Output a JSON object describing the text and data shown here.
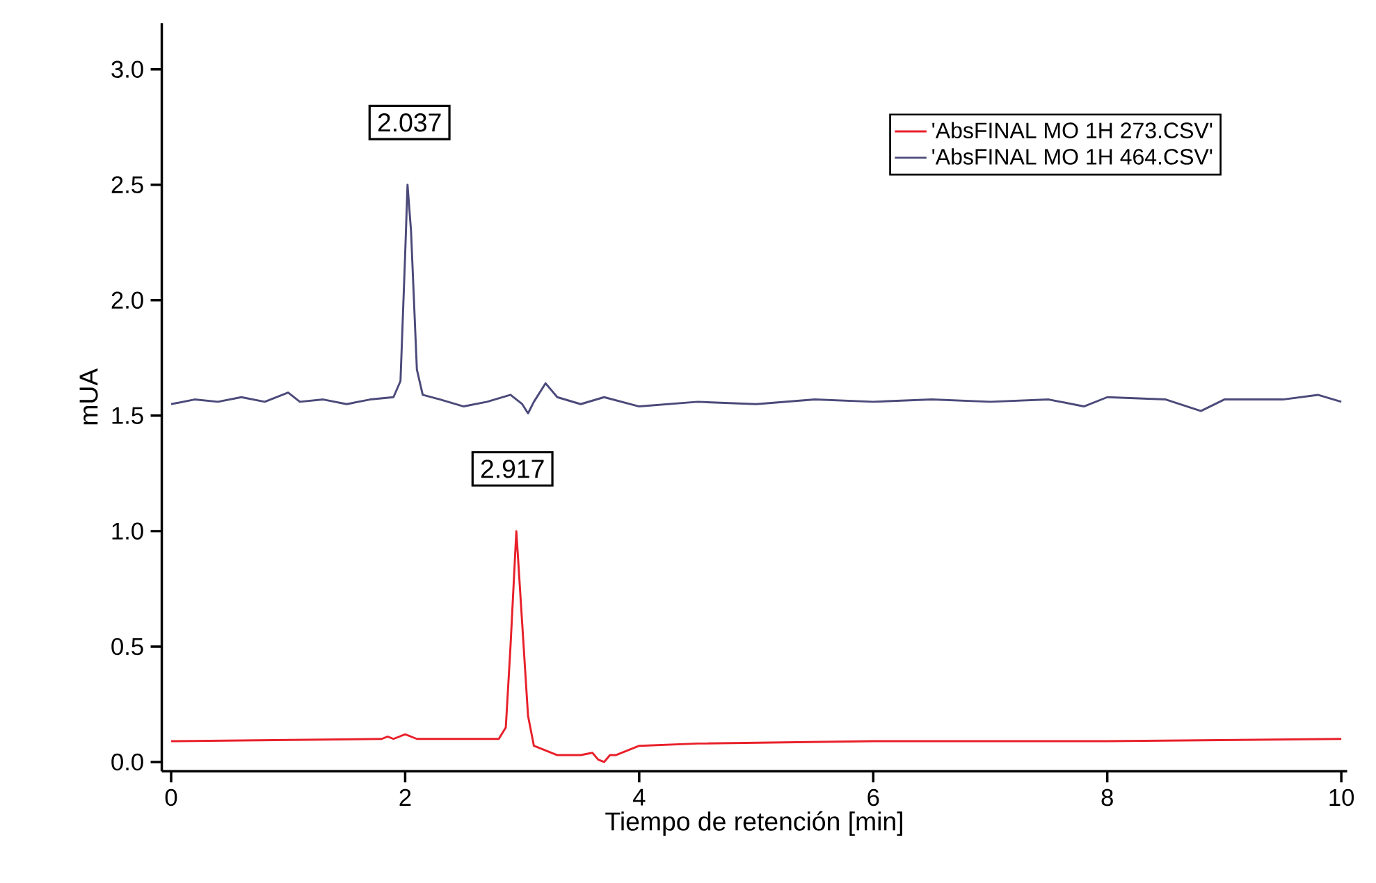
{
  "chart_data": {
    "type": "line",
    "xlabel": "Tiempo de retención [min]",
    "ylabel": "mUA",
    "xlim": [
      -0.08,
      10.05
    ],
    "ylim": [
      -0.04,
      3.2
    ],
    "xticks": [
      0,
      2,
      4,
      6,
      8,
      10
    ],
    "yticks": [
      {
        "value": 0,
        "label": "0.0"
      },
      {
        "value": 0.5,
        "label": "0.5"
      },
      {
        "value": 1,
        "label": "1.0"
      },
      {
        "value": 1.5,
        "label": "1.5"
      },
      {
        "value": 2,
        "label": "2.0"
      },
      {
        "value": 2.5,
        "label": "2.5"
      },
      {
        "value": 3,
        "label": "3.0"
      }
    ],
    "legend": "top right",
    "annotations": [
      {
        "text": "2.037",
        "x": 2.037,
        "y": 2.5
      },
      {
        "text": "2.917",
        "x": 2.917,
        "y": 1.0
      }
    ],
    "series": [
      {
        "name": "'AbsFINAL MO 1H 273.CSV'",
        "color": "#e8202a",
        "x": [
          0,
          1.8,
          1.85,
          1.9,
          2.0,
          2.1,
          2.5,
          2.8,
          2.86,
          2.9,
          2.95,
          3.0,
          3.05,
          3.1,
          3.2,
          3.3,
          3.5,
          3.6,
          3.65,
          3.7,
          3.75,
          3.8,
          3.9,
          4.0,
          4.5,
          6,
          8,
          10
        ],
        "values": [
          0.09,
          0.1,
          0.11,
          0.1,
          0.12,
          0.1,
          0.1,
          0.1,
          0.15,
          0.5,
          1.0,
          0.6,
          0.2,
          0.07,
          0.05,
          0.03,
          0.03,
          0.04,
          0.01,
          0.0,
          0.03,
          0.03,
          0.05,
          0.07,
          0.08,
          0.09,
          0.09,
          0.1
        ]
      },
      {
        "name": "'AbsFINAL MO 1H 464.CSV'",
        "color": "#4b4a7a",
        "x": [
          0,
          0.2,
          0.4,
          0.6,
          0.8,
          1.0,
          1.1,
          1.3,
          1.5,
          1.7,
          1.9,
          1.96,
          2.0,
          2.02,
          2.05,
          2.1,
          2.15,
          2.3,
          2.5,
          2.7,
          2.9,
          3.0,
          3.05,
          3.1,
          3.2,
          3.3,
          3.5,
          3.7,
          4,
          4.5,
          5,
          5.5,
          6,
          6.5,
          7,
          7.5,
          7.8,
          8.0,
          8.5,
          8.8,
          9,
          9.5,
          9.8,
          10
        ],
        "values": [
          1.55,
          1.57,
          1.56,
          1.58,
          1.56,
          1.6,
          1.56,
          1.57,
          1.55,
          1.57,
          1.58,
          1.65,
          2.2,
          2.5,
          2.3,
          1.7,
          1.59,
          1.57,
          1.54,
          1.56,
          1.59,
          1.55,
          1.51,
          1.56,
          1.64,
          1.58,
          1.55,
          1.58,
          1.54,
          1.56,
          1.55,
          1.57,
          1.56,
          1.57,
          1.56,
          1.57,
          1.54,
          1.58,
          1.57,
          1.52,
          1.57,
          1.57,
          1.59,
          1.56
        ]
      }
    ]
  }
}
